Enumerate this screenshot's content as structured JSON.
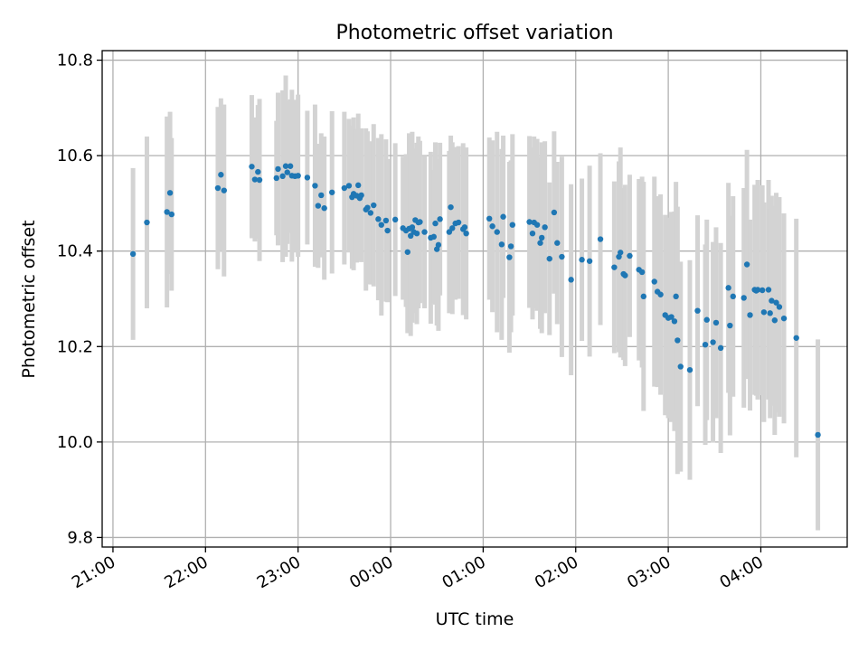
{
  "chart_data": {
    "type": "scatter",
    "title": "Photometric offset variation",
    "xlabel": "UTC time",
    "ylabel": "Photometric offset",
    "x_unit": "UTC time (HH:MM; 21:00–23:59 on day 1, 00:00–04:59 on day 2)",
    "xlim": [
      "20:53",
      "04:56"
    ],
    "ylim": [
      9.78,
      10.82
    ],
    "x_ticks": [
      "21:00",
      "22:00",
      "23:00",
      "00:00",
      "01:00",
      "02:00",
      "03:00",
      "04:00"
    ],
    "y_ticks": [
      9.8,
      10.0,
      10.2,
      10.4,
      10.6,
      10.8
    ],
    "y_tick_labels": [
      "9.8",
      "10.0",
      "10.2",
      "10.4",
      "10.6",
      "10.8"
    ],
    "grid": true,
    "colors": {
      "points": "#1f77b4",
      "error_bars": "#d3d3d3",
      "grid": "#b0b0b0"
    },
    "series": [
      {
        "columns": [
          "time",
          "offset",
          "error"
        ],
        "points": [
          [
            "21:13",
            10.394,
            0.18
          ],
          [
            "21:22",
            10.46,
            0.18
          ],
          [
            "21:35",
            10.482,
            0.2
          ],
          [
            "21:37",
            10.522,
            0.17
          ],
          [
            "21:38",
            10.477,
            0.16
          ],
          [
            "22:08",
            10.532,
            0.17
          ],
          [
            "22:10",
            10.56,
            0.16
          ],
          [
            "22:12",
            10.527,
            0.18
          ],
          [
            "22:30",
            10.577,
            0.15
          ],
          [
            "22:32",
            10.55,
            0.13
          ],
          [
            "22:34",
            10.566,
            0.14
          ],
          [
            "22:35",
            10.549,
            0.17
          ],
          [
            "22:46",
            10.553,
            0.12
          ],
          [
            "22:47",
            10.572,
            0.16
          ],
          [
            "22:50",
            10.557,
            0.18
          ],
          [
            "22:52",
            10.578,
            0.19
          ],
          [
            "22:53",
            10.565,
            0.15
          ],
          [
            "22:55",
            10.578,
            0.14
          ],
          [
            "22:56",
            10.558,
            0.18
          ],
          [
            "22:58",
            10.557,
            0.16
          ],
          [
            "23:00",
            10.558,
            0.17
          ],
          [
            "23:06",
            10.554,
            0.14
          ],
          [
            "23:11",
            10.537,
            0.17
          ],
          [
            "23:13",
            10.495,
            0.13
          ],
          [
            "23:15",
            10.517,
            0.13
          ],
          [
            "23:17",
            10.49,
            0.15
          ],
          [
            "23:22",
            10.523,
            0.17
          ],
          [
            "23:30",
            10.532,
            0.16
          ],
          [
            "23:33",
            10.537,
            0.14
          ],
          [
            "23:35",
            10.513,
            0.15
          ],
          [
            "23:36",
            10.52,
            0.16
          ],
          [
            "23:38",
            10.516,
            0.14
          ],
          [
            "23:39",
            10.538,
            0.15
          ],
          [
            "23:40",
            10.511,
            0.13
          ],
          [
            "23:41",
            10.517,
            0.14
          ],
          [
            "23:44",
            10.487,
            0.17
          ],
          [
            "23:45",
            10.491,
            0.16
          ],
          [
            "23:47",
            10.48,
            0.15
          ],
          [
            "23:49",
            10.496,
            0.17
          ],
          [
            "23:52",
            10.467,
            0.17
          ],
          [
            "23:54",
            10.455,
            0.19
          ],
          [
            "23:57",
            10.464,
            0.17
          ],
          [
            "23:58",
            10.443,
            0.15
          ],
          [
            "00:03",
            10.466,
            0.16
          ],
          [
            "00:08",
            10.448,
            0.15
          ],
          [
            "00:10",
            10.443,
            0.16
          ],
          [
            "00:11",
            10.398,
            0.17
          ],
          [
            "00:12",
            10.447,
            0.2
          ],
          [
            "00:13",
            10.432,
            0.21
          ],
          [
            "00:14",
            10.45,
            0.2
          ],
          [
            "00:15",
            10.44,
            0.17
          ],
          [
            "00:16",
            10.465,
            0.15
          ],
          [
            "00:17",
            10.437,
            0.19
          ],
          [
            "00:18",
            10.46,
            0.18
          ],
          [
            "00:19",
            10.461,
            0.17
          ],
          [
            "00:22",
            10.44,
            0.16
          ],
          [
            "00:26",
            10.428,
            0.18
          ],
          [
            "00:28",
            10.43,
            0.14
          ],
          [
            "00:29",
            10.458,
            0.17
          ],
          [
            "00:30",
            10.404,
            0.16
          ],
          [
            "00:31",
            10.413,
            0.18
          ],
          [
            "00:32",
            10.467,
            0.16
          ],
          [
            "00:38",
            10.44,
            0.17
          ],
          [
            "00:39",
            10.492,
            0.15
          ],
          [
            "00:40",
            10.448,
            0.18
          ],
          [
            "00:42",
            10.458,
            0.16
          ],
          [
            "00:44",
            10.46,
            0.16
          ],
          [
            "00:47",
            10.446,
            0.18
          ],
          [
            "00:48",
            10.45,
            0.14
          ],
          [
            "00:49",
            10.437,
            0.18
          ],
          [
            "01:04",
            10.468,
            0.17
          ],
          [
            "01:06",
            10.452,
            0.18
          ],
          [
            "01:09",
            10.44,
            0.21
          ],
          [
            "01:12",
            10.414,
            0.2
          ],
          [
            "01:13",
            10.472,
            0.17
          ],
          [
            "01:17",
            10.387,
            0.2
          ],
          [
            "01:18",
            10.41,
            0.18
          ],
          [
            "01:19",
            10.455,
            0.19
          ],
          [
            "01:30",
            10.461,
            0.18
          ],
          [
            "01:32",
            10.437,
            0.18
          ],
          [
            "01:33",
            10.46,
            0.18
          ],
          [
            "01:35",
            10.455,
            0.18
          ],
          [
            "01:37",
            10.417,
            0.18
          ],
          [
            "01:38",
            10.428,
            0.2
          ],
          [
            "01:40",
            10.45,
            0.18
          ],
          [
            "01:43",
            10.384,
            0.16
          ],
          [
            "01:46",
            10.481,
            0.17
          ],
          [
            "01:48",
            10.417,
            0.17
          ],
          [
            "01:51",
            10.388,
            0.21
          ],
          [
            "01:57",
            10.34,
            0.2
          ],
          [
            "02:04",
            10.382,
            0.17
          ],
          [
            "02:09",
            10.379,
            0.2
          ],
          [
            "02:16",
            10.425,
            0.18
          ],
          [
            "02:25",
            10.366,
            0.18
          ],
          [
            "02:28",
            10.388,
            0.2
          ],
          [
            "02:29",
            10.397,
            0.22
          ],
          [
            "02:31",
            10.352,
            0.18
          ],
          [
            "02:32",
            10.349,
            0.19
          ],
          [
            "02:35",
            10.39,
            0.17
          ],
          [
            "02:41",
            10.361,
            0.19
          ],
          [
            "02:43",
            10.356,
            0.2
          ],
          [
            "02:44",
            10.305,
            0.24
          ],
          [
            "02:51",
            10.336,
            0.22
          ],
          [
            "02:53",
            10.315,
            0.2
          ],
          [
            "02:55",
            10.309,
            0.21
          ],
          [
            "02:58",
            10.266,
            0.21
          ],
          [
            "03:00",
            10.26,
            0.21
          ],
          [
            "03:02",
            10.262,
            0.22
          ],
          [
            "03:04",
            10.253,
            0.23
          ],
          [
            "03:05",
            10.305,
            0.24
          ],
          [
            "03:06",
            10.213,
            0.28
          ],
          [
            "03:08",
            10.158,
            0.22
          ],
          [
            "03:14",
            10.151,
            0.23
          ],
          [
            "03:19",
            10.275,
            0.2
          ],
          [
            "03:24",
            10.204,
            0.21
          ],
          [
            "03:25",
            10.256,
            0.21
          ],
          [
            "03:29",
            10.209,
            0.21
          ],
          [
            "03:31",
            10.25,
            0.2
          ],
          [
            "03:34",
            10.197,
            0.22
          ],
          [
            "03:39",
            10.323,
            0.22
          ],
          [
            "03:40",
            10.244,
            0.23
          ],
          [
            "03:42",
            10.305,
            0.21
          ],
          [
            "03:49",
            10.302,
            0.23
          ],
          [
            "03:51",
            10.372,
            0.24
          ],
          [
            "03:53",
            10.266,
            0.2
          ],
          [
            "03:56",
            10.319,
            0.22
          ],
          [
            "03:57",
            10.317,
            0.22
          ],
          [
            "03:58",
            10.319,
            0.23
          ],
          [
            "04:01",
            10.318,
            0.22
          ],
          [
            "04:02",
            10.272,
            0.23
          ],
          [
            "04:05",
            10.319,
            0.23
          ],
          [
            "04:06",
            10.27,
            0.22
          ],
          [
            "04:07",
            10.296,
            0.22
          ],
          [
            "04:09",
            10.255,
            0.24
          ],
          [
            "04:10",
            10.292,
            0.23
          ],
          [
            "04:12",
            10.283,
            0.23
          ],
          [
            "04:15",
            10.259,
            0.22
          ],
          [
            "04:23",
            10.218,
            0.25
          ],
          [
            "04:37",
            10.015,
            0.2
          ]
        ]
      }
    ]
  }
}
